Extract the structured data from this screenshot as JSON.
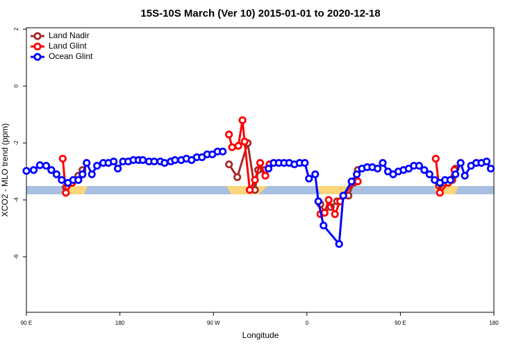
{
  "chart_data": {
    "type": "line",
    "title": "15S-10S March (Ver 10)   2015-01-01 to 2020-12-18",
    "xlabel": "Longitude",
    "ylabel": "XCO2 - MLO trend (ppm)",
    "xlim": [
      90,
      540
    ],
    "xticks": [
      {
        "value": 90,
        "label": "90 E"
      },
      {
        "value": 180,
        "label": "180"
      },
      {
        "value": 270,
        "label": "90 W"
      },
      {
        "value": 360,
        "label": "0"
      },
      {
        "value": 450,
        "label": "90 E"
      },
      {
        "value": 540,
        "label": "180"
      }
    ],
    "ylim": [
      -7.95,
      2.05
    ],
    "yticks": [
      2,
      0,
      -2,
      -4,
      -6
    ],
    "legend": "top-left",
    "series": [
      {
        "name": "Land Nadir",
        "color": "#a52a2a",
        "x": [
          128,
          134,
          140,
          144,
          null,
          285,
          293,
          303,
          310,
          313,
          319,
          324,
          null,
          373,
          377,
          383,
          389,
          400,
          405,
          409,
          null,
          487,
          493,
          500,
          503
        ],
        "values": [
          -3.55,
          -3.4,
          -3.15,
          -2.95,
          null,
          -2.75,
          -3.2,
          -2.0,
          -3.65,
          -2.95,
          -2.95,
          -2.75,
          null,
          -4.15,
          -4.45,
          -4.25,
          -4.05,
          -3.85,
          -3.4,
          -2.95,
          null,
          -3.5,
          -3.4,
          -3.3,
          -2.9
        ]
      },
      {
        "name": "Land Glint",
        "color": "#ff0000",
        "x": [
          125,
          128,
          134,
          140,
          144,
          null,
          285,
          288,
          294,
          298,
          300,
          305,
          310,
          315,
          320,
          324,
          null,
          373,
          377,
          381,
          387,
          392,
          405,
          409,
          null,
          484,
          488,
          496,
          502
        ],
        "values": [
          -2.55,
          -3.75,
          -3.4,
          -3.3,
          -3.1,
          null,
          -1.7,
          -2.15,
          -2.1,
          -1.2,
          -1.95,
          -3.65,
          -3.3,
          -2.7,
          -3.15,
          -2.75,
          null,
          -4.5,
          -4.45,
          -4.0,
          -4.5,
          -4.05,
          -3.35,
          -3.35,
          null,
          -2.55,
          -3.75,
          -3.4,
          -2.95
        ]
      },
      {
        "name": "Ocean Glint",
        "color": "#0000ff",
        "x": [
          90,
          97,
          103,
          109,
          114,
          119,
          124,
          130,
          135,
          140,
          144,
          148,
          153,
          158,
          164,
          169,
          174,
          178,
          183,
          188,
          193,
          198,
          202,
          208,
          213,
          219,
          223,
          229,
          233,
          239,
          244,
          249,
          254,
          259,
          264,
          269,
          274,
          279,
          null,
          323,
          328,
          333,
          338,
          343,
          348,
          353,
          358,
          362,
          368,
          371,
          376,
          391,
          395,
          403,
          408,
          413,
          418,
          423,
          428,
          433,
          438,
          443,
          448,
          453,
          458,
          463,
          468,
          473,
          478,
          483,
          488,
          493,
          498,
          503,
          508,
          512,
          518,
          523,
          528,
          533,
          537
        ],
        "values": [
          -2.98,
          -2.95,
          -2.78,
          -2.8,
          -2.95,
          -3.1,
          -3.3,
          -3.4,
          -3.3,
          -3.3,
          -3.1,
          -2.7,
          -3.1,
          -2.8,
          -2.7,
          -2.7,
          -2.65,
          -2.9,
          -2.65,
          -2.65,
          -2.6,
          -2.6,
          -2.6,
          -2.65,
          -2.65,
          -2.65,
          -2.7,
          -2.65,
          -2.6,
          -2.6,
          -2.55,
          -2.6,
          -2.5,
          -2.5,
          -2.4,
          -2.4,
          -2.3,
          -2.3,
          null,
          -2.9,
          -2.7,
          -2.7,
          -2.7,
          -2.7,
          -2.75,
          -2.7,
          -2.7,
          -3.25,
          -3.1,
          -4.05,
          -4.9,
          -5.55,
          -3.85,
          -3.35,
          -3.1,
          -2.9,
          -2.85,
          -2.85,
          -2.9,
          -2.7,
          -3.0,
          -3.1,
          -3.0,
          -2.95,
          -2.9,
          -2.8,
          -2.8,
          -2.95,
          -3.1,
          -3.3,
          -3.4,
          -3.3,
          -3.3,
          -3.1,
          -2.7,
          -3.15,
          -2.8,
          -2.7,
          -2.7,
          -2.65,
          -2.9
        ]
      }
    ]
  }
}
